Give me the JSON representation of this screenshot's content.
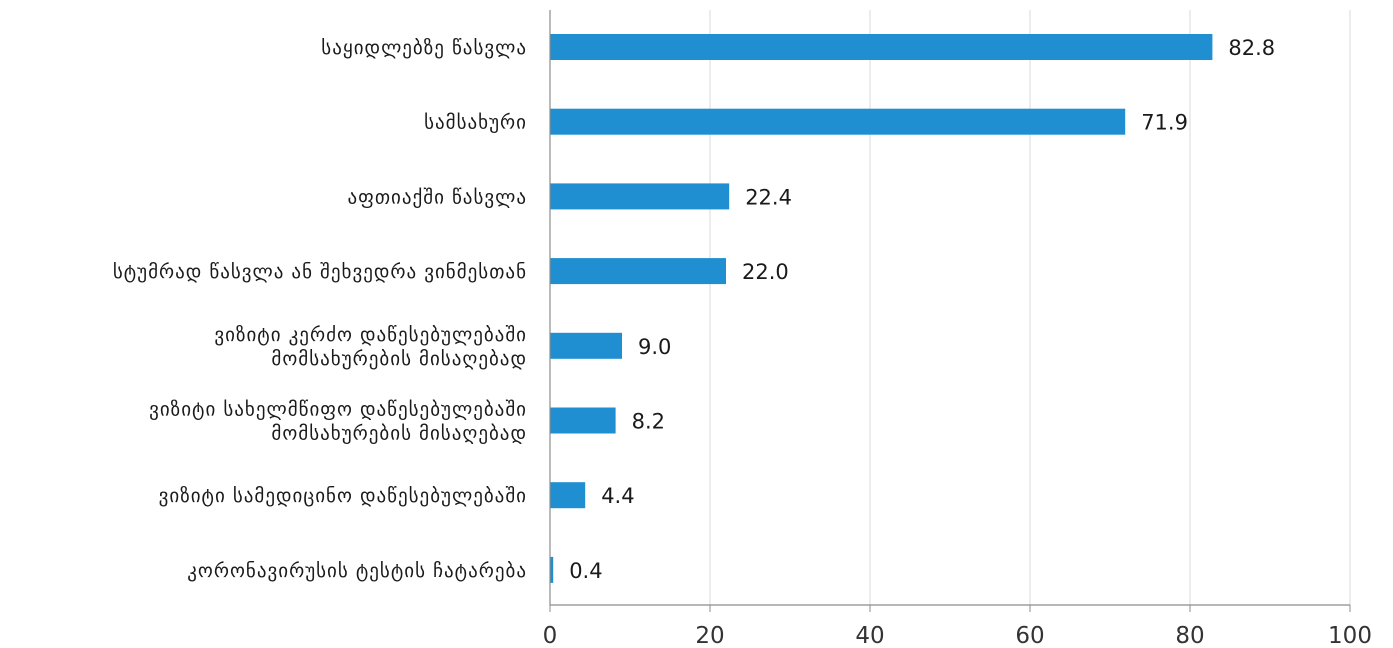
{
  "chart_data": {
    "type": "bar",
    "orientation": "horizontal",
    "categories": [
      [
        "საყიდლებზე წასვლა"
      ],
      [
        "სამსახური"
      ],
      [
        "აფთიაქში წასვლა"
      ],
      [
        "სტუმრად წასვლა ან შეხვედრა ვინმესთან"
      ],
      [
        "ვიზიტი კერძო დაწესებულებაში",
        "მომსახურების მისაღებად"
      ],
      [
        "ვიზიტი სახელმწიფო დაწესებულებაში",
        "მომსახურების მისაღებად"
      ],
      [
        "ვიზიტი სამედიცინო დაწესებულებაში"
      ],
      [
        "კორონავირუსის ტესტის ჩატარება"
      ]
    ],
    "values": [
      82.8,
      71.9,
      22.4,
      22.0,
      9.0,
      8.2,
      4.4,
      0.4
    ],
    "value_labels": [
      "82.8",
      "71.9",
      "22.4",
      "22.0",
      "9.0",
      "8.2",
      "4.4",
      "0.4"
    ],
    "xlim": [
      0,
      100
    ],
    "x_ticks": [
      0,
      20,
      40,
      60,
      80,
      100
    ],
    "grid": "vertical",
    "bar_color": "#1f8fd2",
    "gridline_color": "#d9d9d9",
    "axis_color": "#8c8c8c"
  }
}
